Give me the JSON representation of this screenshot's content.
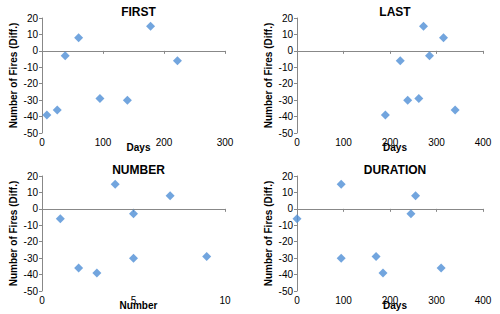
{
  "chart_data": [
    {
      "type": "scatter",
      "title": "FIRST",
      "x_label": "Days",
      "y_label": "Number of Fires (Diff.)",
      "x": [
        8,
        25,
        38,
        60,
        95,
        140,
        178,
        222
      ],
      "values": [
        -39,
        -36,
        -3,
        8,
        -29,
        -30,
        15,
        -6
      ],
      "xlim": [
        0,
        300
      ],
      "xticks": [
        0,
        100,
        200,
        300
      ],
      "ylim": [
        -50,
        20
      ],
      "yticks": [
        -50,
        -40,
        -30,
        -20,
        -10,
        0,
        10,
        20
      ],
      "color": "#4f8fd6",
      "marker": "diamond",
      "grid": false
    },
    {
      "type": "scatter",
      "title": "LAST",
      "x_label": "Days",
      "y_label": "Number of Fires (Diff.)",
      "x": [
        190,
        222,
        238,
        262,
        272,
        285,
        315,
        340
      ],
      "values": [
        -39,
        -6,
        -30,
        -29,
        15,
        -3,
        8,
        -36
      ],
      "xlim": [
        0,
        400
      ],
      "xticks": [
        0,
        100,
        200,
        300,
        400
      ],
      "ylim": [
        -50,
        20
      ],
      "yticks": [
        -50,
        -40,
        -30,
        -20,
        -10,
        0,
        10,
        20
      ],
      "color": "#4f8fd6",
      "marker": "diamond",
      "grid": false
    },
    {
      "type": "scatter",
      "title": "NUMBER",
      "x_label": "Number",
      "y_label": "Number of Fires (Diff.)",
      "x": [
        1,
        2,
        3,
        4,
        5,
        5,
        7,
        9
      ],
      "values": [
        -6,
        -36,
        -39,
        15,
        -3,
        -30,
        8,
        -29
      ],
      "xlim": [
        0,
        10
      ],
      "xticks": [
        0,
        5,
        10
      ],
      "ylim": [
        -50,
        20
      ],
      "yticks": [
        -50,
        -40,
        -30,
        -20,
        -10,
        0,
        10,
        20
      ],
      "color": "#4f8fd6",
      "marker": "diamond",
      "grid": false
    },
    {
      "type": "scatter",
      "title": "DURATION",
      "x_label": "Days",
      "y_label": "Number of Fires (Diff.)",
      "x": [
        0,
        95,
        95,
        170,
        185,
        245,
        255,
        310
      ],
      "values": [
        -6,
        15,
        -30,
        -29,
        -39,
        -3,
        8,
        -36
      ],
      "xlim": [
        0,
        400
      ],
      "xticks": [
        0,
        100,
        200,
        300,
        400
      ],
      "ylim": [
        -50,
        20
      ],
      "yticks": [
        -50,
        -40,
        -30,
        -20,
        -10,
        0,
        10,
        20
      ],
      "color": "#4f8fd6",
      "marker": "diamond",
      "grid": false
    }
  ]
}
